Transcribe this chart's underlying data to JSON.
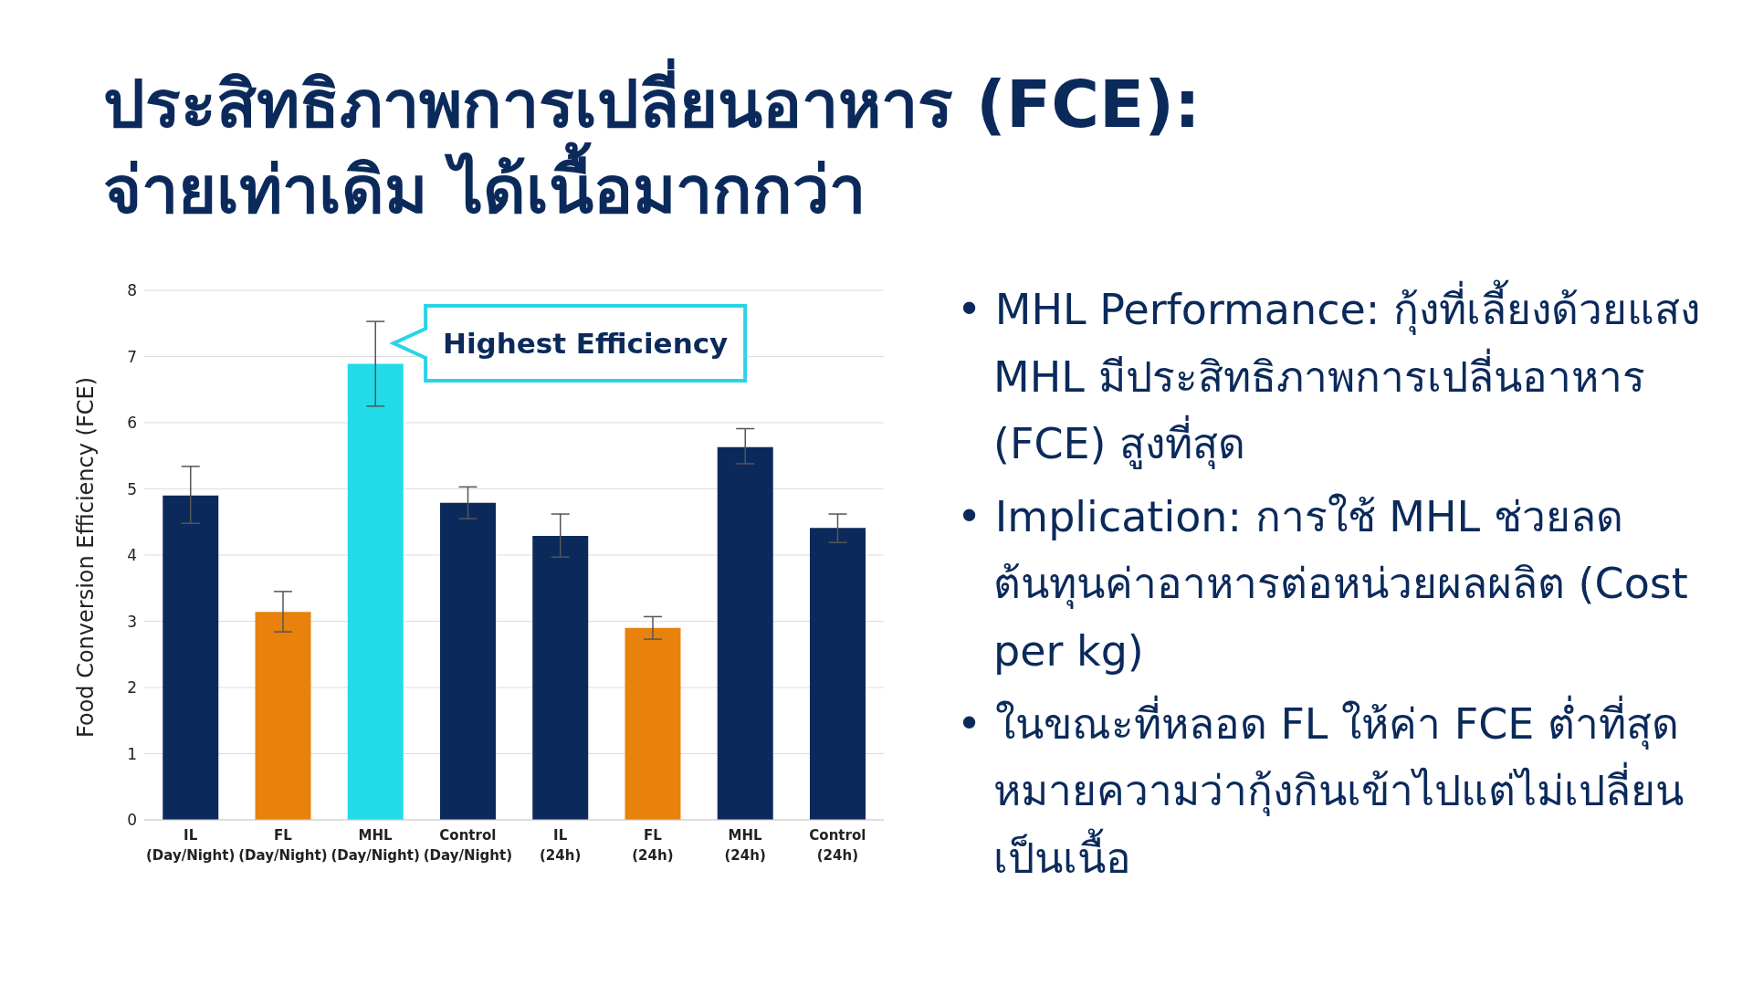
{
  "chart_data": {
    "type": "bar",
    "title": "ประสิทธิภาพการเปลี่ยนอาหาร (FCE):\nจ่ายเท่าเดิม ได้เนื้อมากกว่า",
    "ylabel": "Food Conversion Efficiency (FCE)",
    "categories": [
      "IL (Day/Night)",
      "FL (Day/Night)",
      "MHL (Day/Night)",
      "Control (Day/Night)",
      "IL (24h)",
      "FL (24h)",
      "MHL (24h)",
      "Control (24h)"
    ],
    "values": [
      4.9,
      3.14,
      6.89,
      4.79,
      4.29,
      2.9,
      5.63,
      4.41
    ],
    "colors": [
      "#0b2a5b",
      "#e8820c",
      "#22dbe9",
      "#0b2a5b",
      "#0b2a5b",
      "#e8820c",
      "#0b2a5b",
      "#0b2a5b"
    ],
    "errors": [
      [
        4.48,
        5.34
      ],
      [
        2.84,
        3.45
      ],
      [
        6.25,
        7.53
      ],
      [
        4.55,
        5.03
      ],
      [
        3.97,
        4.62
      ],
      [
        2.73,
        3.07
      ],
      [
        5.38,
        5.91
      ],
      [
        4.19,
        4.62
      ]
    ],
    "ylim": [
      0,
      8
    ],
    "yticks": [
      0,
      1,
      2,
      3,
      4,
      5,
      6,
      7,
      8
    ],
    "grid": "y",
    "annotations": [
      {
        "text": "Highest Efficiency",
        "x": "MHL (Day/Night)",
        "y": 7.2
      },
      "• MHL Performance: กุ้งที่เลี้ยงด้วยแสง MHL มีประสิทธิภาพการเปลี่นอาหาร (FCE) สูงที่สุด",
      "• Implication: การใช้ MHL ช่วยลดต้นทุนค่าอาหารต่อหน่วยผลผลิต (Cost per kg)",
      "• ในขณะที่หลอด FL ให้ค่า FCE ต่ำที่สุด หมายความว่ากุ้งกินเข้าไปแต่ไม่เปลี่ยนเป็นเนื้อ"
    ]
  }
}
